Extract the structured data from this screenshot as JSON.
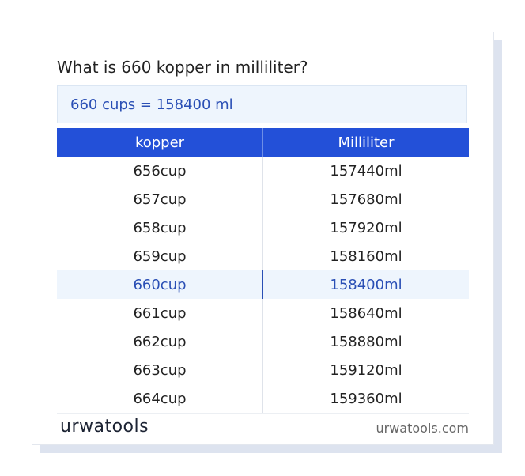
{
  "title": "What is 660 kopper in milliliter?",
  "result": "660 cups = 158400 ml",
  "table": {
    "headers": [
      "kopper",
      "Milliliter"
    ],
    "rows": [
      [
        "656cup",
        "157440ml"
      ],
      [
        "657cup",
        "157680ml"
      ],
      [
        "658cup",
        "157920ml"
      ],
      [
        "659cup",
        "158160ml"
      ],
      [
        "660cup",
        "158400ml"
      ],
      [
        "661cup",
        "158640ml"
      ],
      [
        "662cup",
        "158880ml"
      ],
      [
        "663cup",
        "159120ml"
      ],
      [
        "664cup",
        "159360ml"
      ]
    ]
  },
  "footer": {
    "logo": "urwatools",
    "url": "urwatools.com"
  }
}
